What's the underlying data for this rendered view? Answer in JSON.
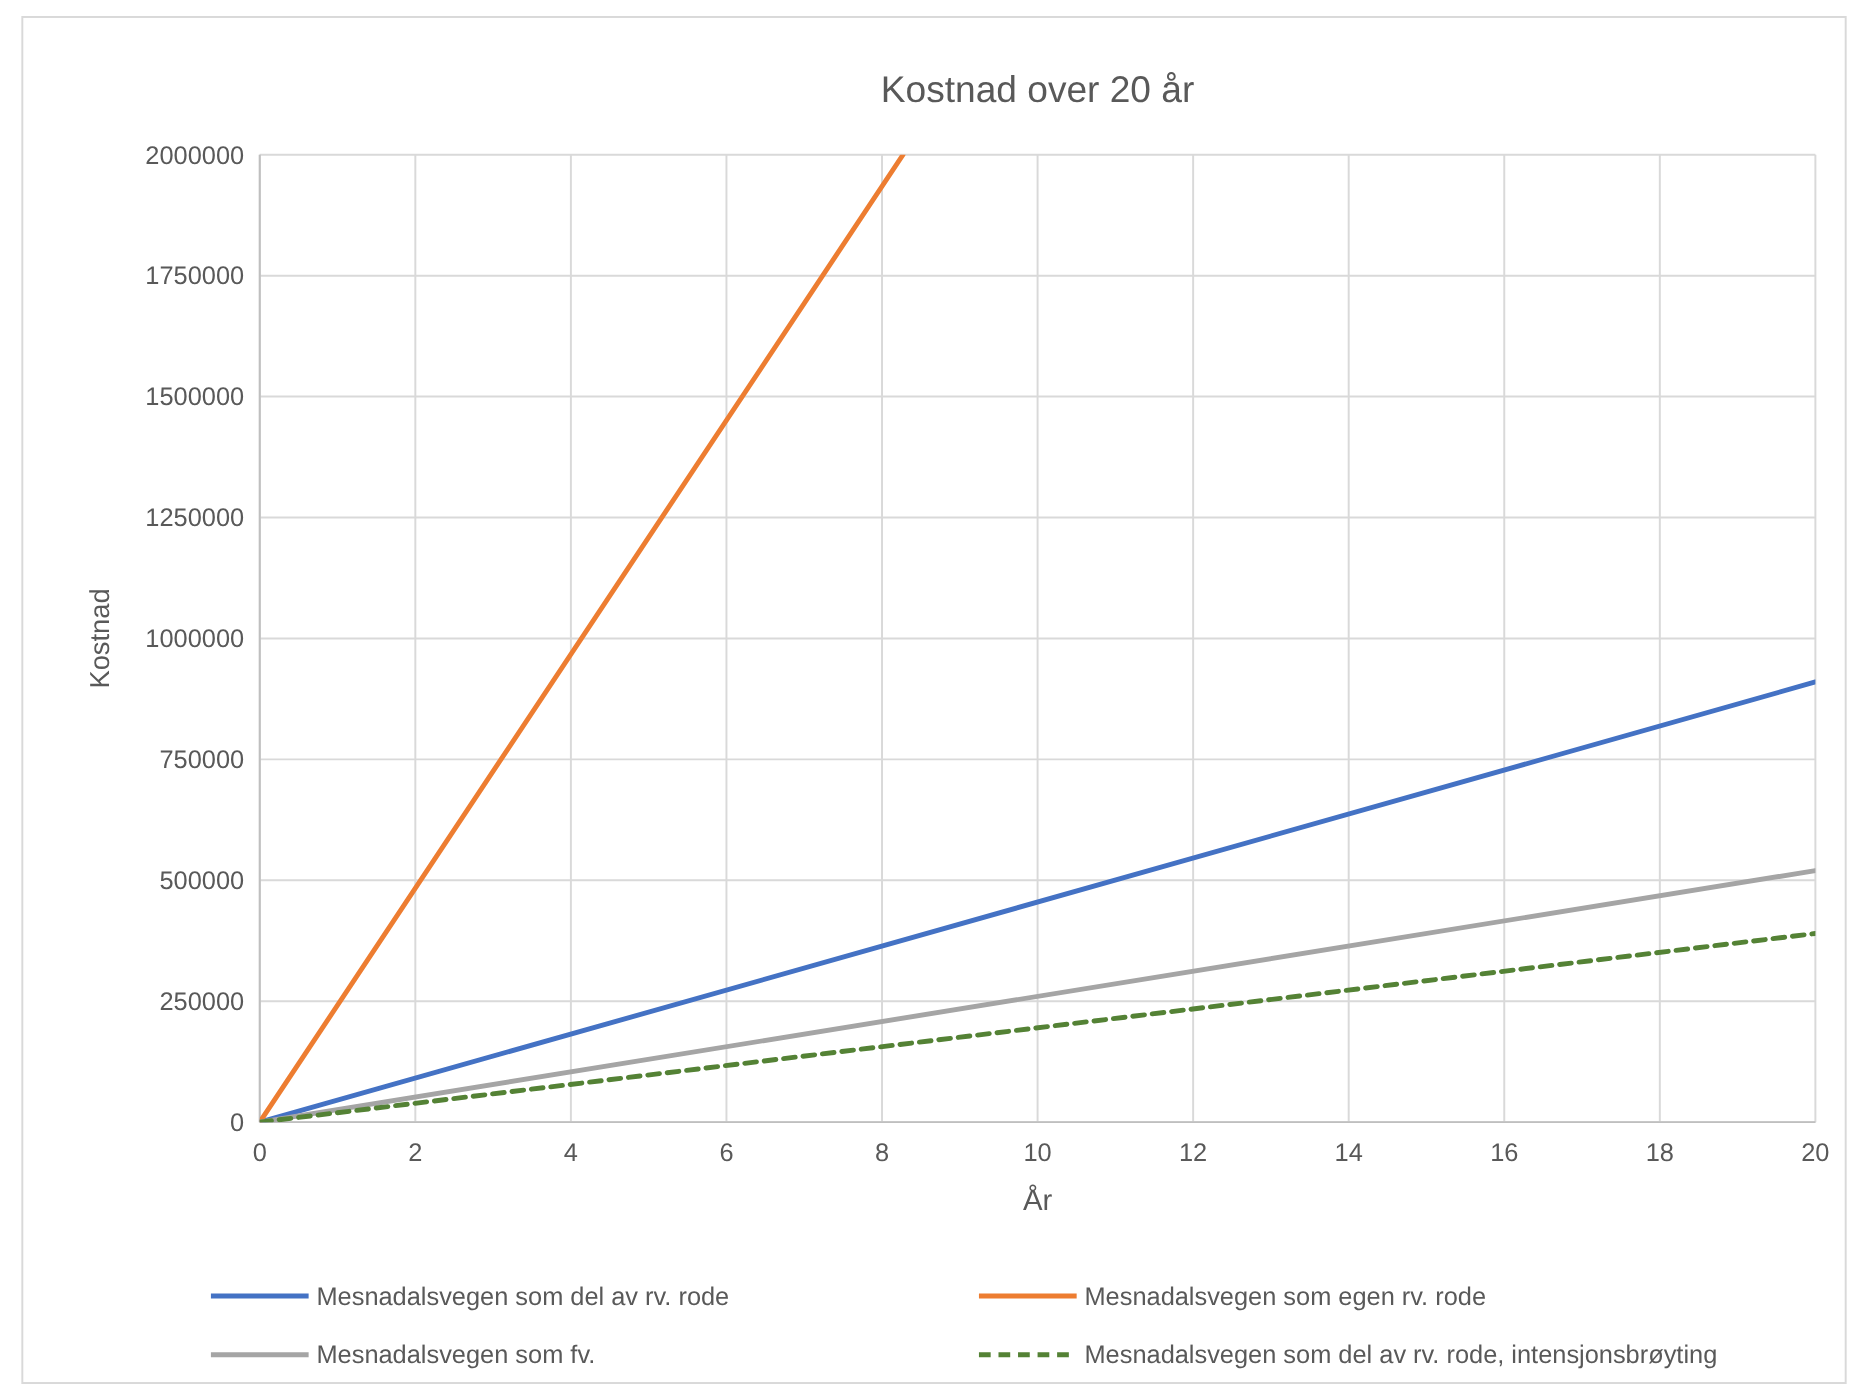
{
  "chart_data": {
    "type": "line",
    "title": "Kostnad over 20 år",
    "xlabel": "År",
    "ylabel": "Kostnad",
    "xlim": [
      0,
      20
    ],
    "xticks": [
      0,
      2,
      4,
      6,
      8,
      10,
      12,
      14,
      16,
      18,
      20
    ],
    "ylim": [
      0,
      2000000
    ],
    "yticks": [
      0,
      250000,
      500000,
      750000,
      1000000,
      1250000,
      1500000,
      1750000,
      2000000
    ],
    "grid": true,
    "legend": "bottom",
    "series": [
      {
        "name": "Mesnadalsvegen som del av rv. rode",
        "color": "#4472c4",
        "x": [
          0,
          20
        ],
        "values": [
          0,
          910000
        ]
      },
      {
        "name": "Mesnadalsvegen som egen rv. rode",
        "color": "#ed7d31",
        "x": [
          0,
          8.27
        ],
        "values": [
          0,
          2000000
        ]
      },
      {
        "name": "Mesnadalsvegen som fv.",
        "color": "#a5a5a5",
        "x": [
          0,
          20
        ],
        "values": [
          0,
          520000
        ]
      },
      {
        "name": "Mesnadalsvegen som del av rv. rode, intensjonsbrøyting",
        "color": "#548235",
        "x": [
          0,
          20
        ],
        "values": [
          0,
          390000
        ],
        "line_style": "dashed"
      }
    ]
  }
}
